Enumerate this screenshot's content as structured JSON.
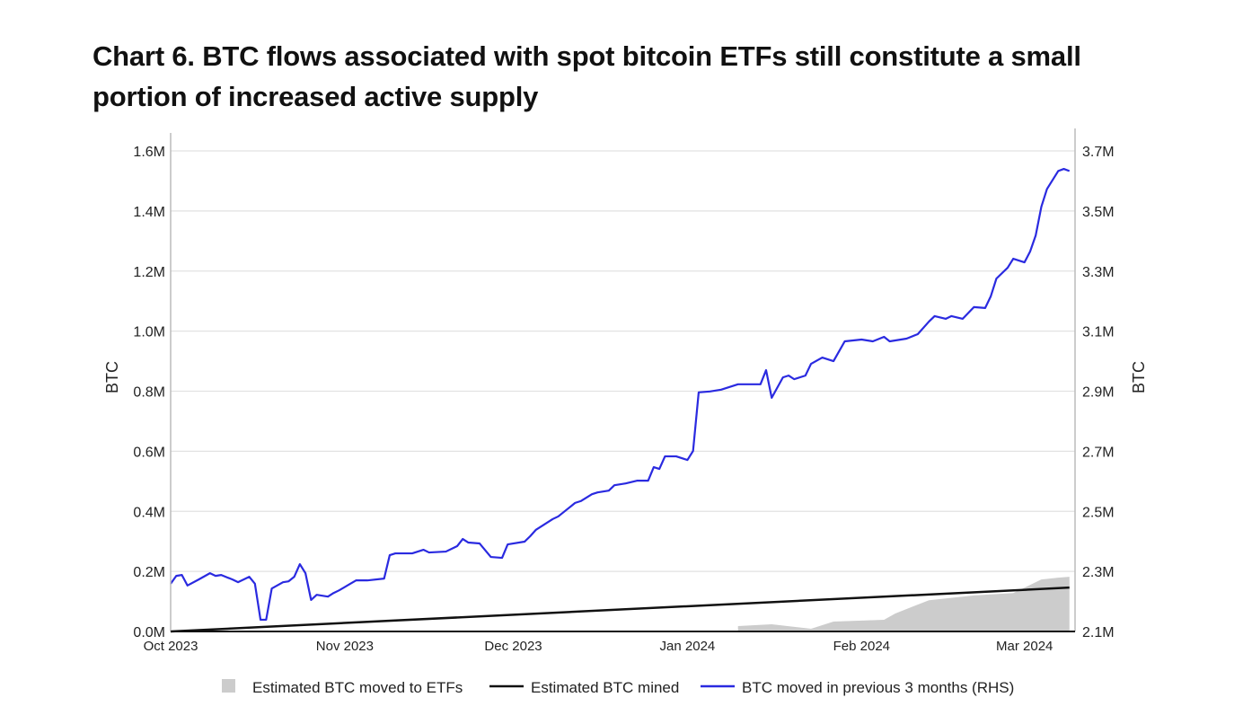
{
  "chart_data": {
    "type": "line",
    "title": "Chart 6. BTC flows associated with spot bitcoin ETFs still constitute a small portion of increased active supply",
    "ylabel_left": "BTC",
    "ylabel_right": "BTC",
    "ylim_left": [
      0,
      1.6
    ],
    "ylim_right": [
      2.1,
      3.7
    ],
    "yticks_left": [
      "0.0M",
      "0.2M",
      "0.4M",
      "0.6M",
      "0.8M",
      "1.0M",
      "1.2M",
      "1.4M",
      "1.6M"
    ],
    "yticks_right": [
      "2.1M",
      "2.3M",
      "2.5M",
      "2.7M",
      "2.9M",
      "3.1M",
      "3.3M",
      "3.5M",
      "3.7M"
    ],
    "xlim": [
      "2023-10-01",
      "2024-03-10"
    ],
    "xticks": [
      {
        "date": "2023-10-01",
        "label": "Oct 2023"
      },
      {
        "date": "2023-11-01",
        "label": "Nov 2023"
      },
      {
        "date": "2023-12-01",
        "label": "Dec 2023"
      },
      {
        "date": "2024-01-01",
        "label": "Jan 2024"
      },
      {
        "date": "2024-02-01",
        "label": "Feb 2024"
      },
      {
        "date": "2024-03-01",
        "label": "Mar 2024"
      }
    ],
    "grid": true,
    "legend_position": "bottom",
    "colors": {
      "etf": "#cccccc",
      "mined": "#111111",
      "moved": "#2a2ae0"
    },
    "series": [
      {
        "name": "Estimated BTC moved to ETFs",
        "type": "area",
        "axis": "left",
        "unit": "M BTC",
        "points": [
          [
            "2024-01-10",
            0
          ],
          [
            "2024-01-10",
            0.018
          ],
          [
            "2024-01-16",
            0.024
          ],
          [
            "2024-01-23",
            0.009
          ],
          [
            "2024-01-27",
            0.033
          ],
          [
            "2024-02-05",
            0.039
          ],
          [
            "2024-02-07",
            0.06
          ],
          [
            "2024-02-13",
            0.104
          ],
          [
            "2024-02-21",
            0.12
          ],
          [
            "2024-02-28",
            0.128
          ],
          [
            "2024-03-04",
            0.173
          ],
          [
            "2024-03-07",
            0.179
          ],
          [
            "2024-03-09",
            0.182
          ]
        ]
      },
      {
        "name": "Estimated BTC mined",
        "type": "line",
        "axis": "left",
        "unit": "M BTC",
        "points": [
          [
            "2023-10-01",
            0
          ],
          [
            "2024-03-09",
            0.146
          ]
        ]
      },
      {
        "name": "BTC moved in previous 3 months (RHS)",
        "type": "line",
        "axis": "right",
        "unit": "M BTC",
        "points": [
          [
            "2023-10-01",
            2.259
          ],
          [
            "2023-10-02",
            2.285
          ],
          [
            "2023-10-03",
            2.288
          ],
          [
            "2023-10-04",
            2.253
          ],
          [
            "2023-10-06",
            2.273
          ],
          [
            "2023-10-08",
            2.294
          ],
          [
            "2023-10-09",
            2.285
          ],
          [
            "2023-10-10",
            2.288
          ],
          [
            "2023-10-12",
            2.273
          ],
          [
            "2023-10-13",
            2.264
          ],
          [
            "2023-10-15",
            2.282
          ],
          [
            "2023-10-16",
            2.259
          ],
          [
            "2023-10-17",
            2.139
          ],
          [
            "2023-10-18",
            2.139
          ],
          [
            "2023-10-19",
            2.243
          ],
          [
            "2023-10-21",
            2.264
          ],
          [
            "2023-10-22",
            2.267
          ],
          [
            "2023-10-23",
            2.282
          ],
          [
            "2023-10-24",
            2.324
          ],
          [
            "2023-10-25",
            2.294
          ],
          [
            "2023-10-26",
            2.205
          ],
          [
            "2023-10-27",
            2.222
          ],
          [
            "2023-10-29",
            2.216
          ],
          [
            "2023-10-30",
            2.228
          ],
          [
            "2023-10-31",
            2.237
          ],
          [
            "2023-11-02",
            2.259
          ],
          [
            "2023-11-03",
            2.27
          ],
          [
            "2023-11-05",
            2.27
          ],
          [
            "2023-11-08",
            2.276
          ],
          [
            "2023-11-09",
            2.354
          ],
          [
            "2023-11-10",
            2.36
          ],
          [
            "2023-11-13",
            2.36
          ],
          [
            "2023-11-15",
            2.372
          ],
          [
            "2023-11-16",
            2.363
          ],
          [
            "2023-11-19",
            2.366
          ],
          [
            "2023-11-21",
            2.384
          ],
          [
            "2023-11-22",
            2.408
          ],
          [
            "2023-11-23",
            2.396
          ],
          [
            "2023-11-25",
            2.393
          ],
          [
            "2023-11-27",
            2.348
          ],
          [
            "2023-11-29",
            2.345
          ],
          [
            "2023-11-30",
            2.39
          ],
          [
            "2023-12-03",
            2.399
          ],
          [
            "2023-12-04",
            2.417
          ],
          [
            "2023-12-05",
            2.438
          ],
          [
            "2023-12-08",
            2.474
          ],
          [
            "2023-12-09",
            2.483
          ],
          [
            "2023-12-12",
            2.528
          ],
          [
            "2023-12-13",
            2.534
          ],
          [
            "2023-12-15",
            2.557
          ],
          [
            "2023-12-16",
            2.563
          ],
          [
            "2023-12-18",
            2.569
          ],
          [
            "2023-12-19",
            2.587
          ],
          [
            "2023-12-21",
            2.593
          ],
          [
            "2023-12-23",
            2.602
          ],
          [
            "2023-12-25",
            2.602
          ],
          [
            "2023-12-26",
            2.647
          ],
          [
            "2023-12-27",
            2.641
          ],
          [
            "2023-12-28",
            2.683
          ],
          [
            "2023-12-30",
            2.683
          ],
          [
            "2024-01-01",
            2.671
          ],
          [
            "2024-01-02",
            2.701
          ],
          [
            "2024-01-03",
            2.896
          ],
          [
            "2024-01-05",
            2.899
          ],
          [
            "2024-01-07",
            2.905
          ],
          [
            "2024-01-10",
            2.923
          ],
          [
            "2024-01-14",
            2.923
          ],
          [
            "2024-01-15",
            2.97
          ],
          [
            "2024-01-16",
            2.878
          ],
          [
            "2024-01-18",
            2.946
          ],
          [
            "2024-01-19",
            2.952
          ],
          [
            "2024-01-20",
            2.94
          ],
          [
            "2024-01-22",
            2.952
          ],
          [
            "2024-01-23",
            2.991
          ],
          [
            "2024-01-25",
            3.012
          ],
          [
            "2024-01-27",
            3.0
          ],
          [
            "2024-01-29",
            3.066
          ],
          [
            "2024-02-01",
            3.072
          ],
          [
            "2024-02-03",
            3.066
          ],
          [
            "2024-02-05",
            3.081
          ],
          [
            "2024-02-06",
            3.066
          ],
          [
            "2024-02-09",
            3.075
          ],
          [
            "2024-02-11",
            3.09
          ],
          [
            "2024-02-13",
            3.132
          ],
          [
            "2024-02-14",
            3.15
          ],
          [
            "2024-02-16",
            3.141
          ],
          [
            "2024-02-17",
            3.15
          ],
          [
            "2024-02-19",
            3.141
          ],
          [
            "2024-02-21",
            3.18
          ],
          [
            "2024-02-23",
            3.177
          ],
          [
            "2024-02-24",
            3.216
          ],
          [
            "2024-02-25",
            3.275
          ],
          [
            "2024-02-27",
            3.311
          ],
          [
            "2024-02-28",
            3.341
          ],
          [
            "2024-03-01",
            3.329
          ],
          [
            "2024-03-02",
            3.365
          ],
          [
            "2024-03-03",
            3.419
          ],
          [
            "2024-03-04",
            3.514
          ],
          [
            "2024-03-05",
            3.573
          ],
          [
            "2024-03-07",
            3.633
          ],
          [
            "2024-03-08",
            3.64
          ],
          [
            "2024-03-09",
            3.633
          ]
        ]
      }
    ]
  }
}
